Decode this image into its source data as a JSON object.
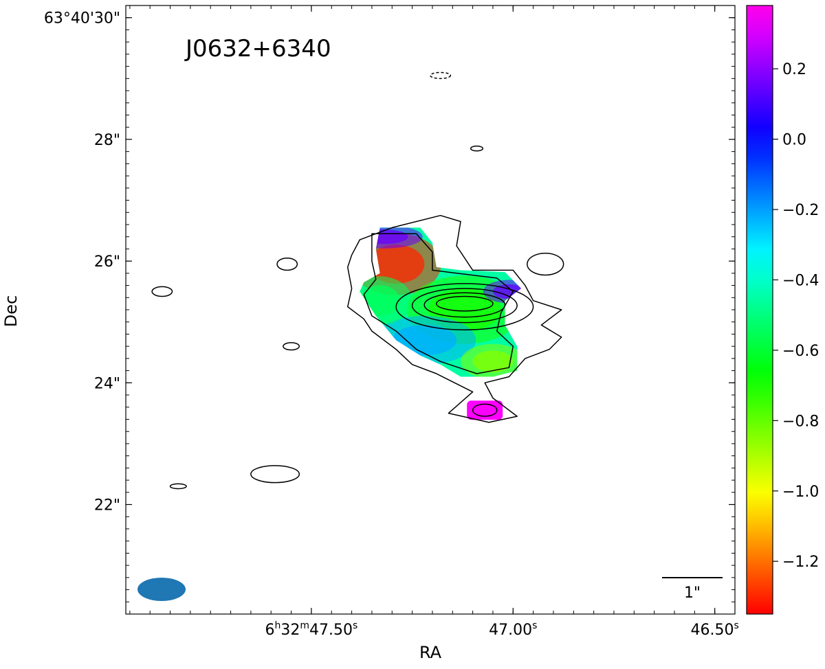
{
  "chart_data": {
    "type": "heatmap",
    "title": "",
    "source_label": "J0632+6340",
    "xlabel": "RA",
    "ylabel": "Dec",
    "x_ticks": [
      {
        "value": 47.5,
        "label_main": "6",
        "sup1": "h",
        "label_mid": "32",
        "sup2": "m",
        "label_sec": "47.50",
        "sup3": "s"
      },
      {
        "value": 47.0,
        "label_main": "",
        "sup1": "",
        "label_mid": "",
        "sup2": "",
        "label_sec": "47.00",
        "sup3": "s"
      },
      {
        "value": 46.5,
        "label_main": "",
        "sup1": "",
        "label_mid": "",
        "sup2": "",
        "label_sec": "46.50",
        "sup3": "s"
      }
    ],
    "x_unit": "seconds of RA (6h32m + x)",
    "xlim": [
      47.96,
      46.45
    ],
    "y_ticks": [
      {
        "value": 30,
        "label": "63°40'30\""
      },
      {
        "value": 28,
        "label": "28\""
      },
      {
        "value": 26,
        "label": "26\""
      },
      {
        "value": 24,
        "label": "24\""
      },
      {
        "value": 22,
        "label": "22\""
      }
    ],
    "y_unit": "arcsec of Dec (63°40' + y)",
    "ylim": [
      20.2,
      30.2
    ],
    "colorbar": {
      "range": [
        -1.35,
        0.38
      ],
      "ticks": [
        {
          "value": 0.2,
          "label": "0.2"
        },
        {
          "value": 0.0,
          "label": "0.0"
        },
        {
          "value": -0.2,
          "label": "−0.2"
        },
        {
          "value": -0.4,
          "label": "−0.4"
        },
        {
          "value": -0.6,
          "label": "−0.6"
        },
        {
          "value": -0.8,
          "label": "−0.8"
        },
        {
          "value": -1.0,
          "label": "−1.0"
        },
        {
          "value": -1.2,
          "label": "−1.2"
        }
      ],
      "colormap": "gist_rainbow_r"
    },
    "spectral_index_blobs": [
      {
        "ra": 47.29,
        "dec": 25.95,
        "sx": 0.07,
        "sy": 0.32,
        "value": -1.3
      },
      {
        "ra": 47.12,
        "dec": 25.2,
        "sx": 0.09,
        "sy": 0.35,
        "value": -0.7
      },
      {
        "ra": 47.22,
        "dec": 24.7,
        "sx": 0.08,
        "sy": 0.25,
        "value": -0.22
      },
      {
        "ra": 47.05,
        "dec": 24.35,
        "sx": 0.05,
        "sy": 0.18,
        "value": -0.85
      },
      {
        "ra": 47.01,
        "dec": 25.5,
        "sx": 0.04,
        "sy": 0.12,
        "value": 0.15
      },
      {
        "ra": 47.32,
        "dec": 26.4,
        "sx": 0.06,
        "sy": 0.12,
        "value": 0.15
      },
      {
        "ra": 47.33,
        "dec": 25.35,
        "sx": 0.05,
        "sy": 0.25,
        "value": -0.55
      }
    ],
    "compact_component": {
      "ra": 47.07,
      "dec": 23.55,
      "value": 0.35
    },
    "contour_levels": 6,
    "scale_bar_label": "1\"",
    "beam": {
      "shape": "ellipse",
      "color": "#1f77b4"
    }
  }
}
